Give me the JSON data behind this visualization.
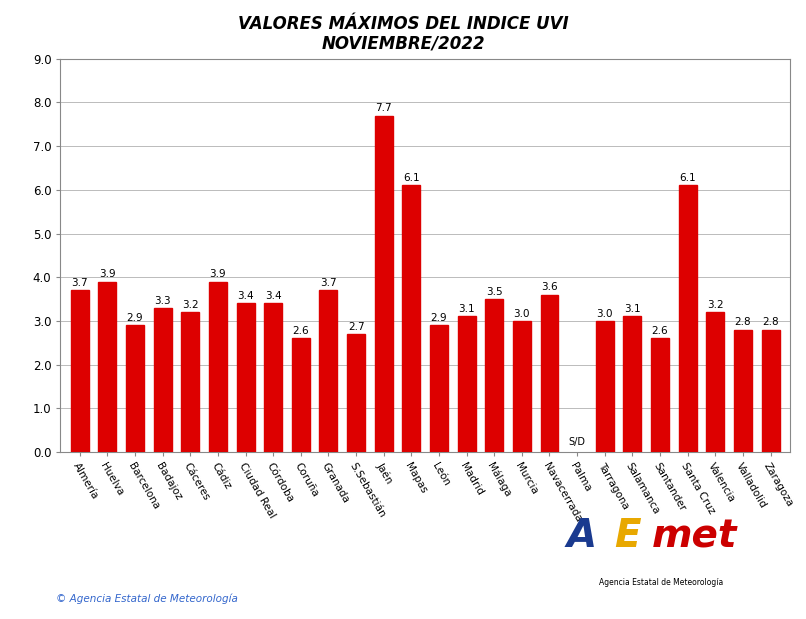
{
  "title_line1": "VALORES MÁXIMOS DEL INDICE UVI",
  "title_line2": "NOVIEMBRE/2022",
  "categories": [
    "Almería",
    "Huelva",
    "Barcelona",
    "Badajoz",
    "Cáceres",
    "Cádiz",
    "Ciudad Real",
    "Córdoba",
    "Coruña",
    "Granada",
    "S.Sebastián",
    "Jaén",
    "Mapas",
    "León",
    "Madrid",
    "Málaga",
    "Murcia",
    "Navacerrada",
    "Palma",
    "Tarragona",
    "Salamanca",
    "Santander",
    "Santa Cruz",
    "Valencia",
    "Valladolid",
    "Zaragoza"
  ],
  "values": [
    3.7,
    3.9,
    2.9,
    3.3,
    3.2,
    3.9,
    3.4,
    3.4,
    2.6,
    3.7,
    2.7,
    7.7,
    6.1,
    2.9,
    3.1,
    3.5,
    3.0,
    3.6,
    0.0,
    3.0,
    3.1,
    2.6,
    6.1,
    3.2,
    2.8,
    2.8
  ],
  "sd_index": 18,
  "bar_color": "#dd0000",
  "ylim": [
    0,
    9.0
  ],
  "yticks": [
    0.0,
    1.0,
    2.0,
    3.0,
    4.0,
    5.0,
    6.0,
    7.0,
    8.0,
    9.0
  ],
  "copyright_text": "© Agencia Estatal de Meteorología",
  "background_color": "#ffffff",
  "grid_color": "#bbbbbb",
  "value_labels": [
    "3.7",
    "3.9",
    "2.9",
    "3.3",
    "3.2",
    "3.9",
    "3.4",
    "3.4",
    "2.6",
    "3.7",
    "2.7",
    "7.7",
    "6.1",
    "2.9",
    "3.1",
    "3.5",
    "3.0",
    "3.6",
    "",
    "3.0",
    "3.1",
    "2.6",
    "6.1",
    "3.2",
    "2.8",
    "2.8"
  ]
}
